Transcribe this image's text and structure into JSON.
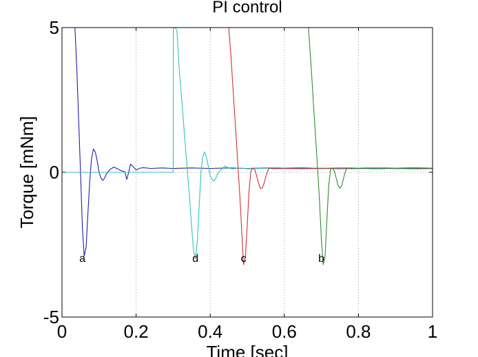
{
  "chart_data": {
    "type": "line",
    "title": "PI control",
    "xlabel": "Time [sec]",
    "ylabel": "Torque [mNm]",
    "xlim": [
      0,
      1
    ],
    "ylim": [
      -5,
      5
    ],
    "grid": "dotted vertical",
    "xticks": [
      0,
      0.2,
      0.4,
      0.6,
      0.8,
      1
    ],
    "xtick_labels": [
      "0",
      "0.2",
      "0.4",
      "0.6",
      "0.8",
      "1"
    ],
    "yticks": [
      -5,
      0,
      5
    ],
    "ytick_labels": [
      "-5",
      "0",
      "5"
    ],
    "annotations": [
      {
        "text": "a",
        "x": 0.055,
        "y": -3.1
      },
      {
        "text": "d",
        "x": 0.36,
        "y": -3.1
      },
      {
        "text": "c",
        "x": 0.49,
        "y": -3.1
      },
      {
        "text": "b",
        "x": 0.7,
        "y": -3.1
      }
    ],
    "series": [
      {
        "name": "a",
        "color": "#1f1fa8",
        "points": [
          [
            0.035,
            5.0
          ],
          [
            0.04,
            3.6
          ],
          [
            0.045,
            1.8
          ],
          [
            0.05,
            0.0
          ],
          [
            0.055,
            -1.9
          ],
          [
            0.06,
            -2.9
          ],
          [
            0.065,
            -2.6
          ],
          [
            0.07,
            -1.4
          ],
          [
            0.075,
            -0.3
          ],
          [
            0.08,
            0.5
          ],
          [
            0.085,
            0.8
          ],
          [
            0.09,
            0.7
          ],
          [
            0.095,
            0.4
          ],
          [
            0.1,
            0.0
          ],
          [
            0.105,
            -0.2
          ],
          [
            0.11,
            -0.28
          ],
          [
            0.115,
            -0.2
          ],
          [
            0.12,
            -0.05
          ],
          [
            0.13,
            0.1
          ],
          [
            0.14,
            0.18
          ],
          [
            0.15,
            0.12
          ],
          [
            0.16,
            0.05
          ],
          [
            0.165,
            0.04
          ],
          [
            0.17,
            0.0
          ],
          [
            0.175,
            -0.25
          ],
          [
            0.18,
            0.0
          ],
          [
            0.185,
            0.28
          ],
          [
            0.19,
            0.22
          ],
          [
            0.2,
            0.08
          ],
          [
            0.21,
            0.14
          ],
          [
            0.22,
            0.16
          ],
          [
            0.24,
            0.13
          ],
          [
            0.27,
            0.15
          ],
          [
            0.3,
            0.13
          ],
          [
            0.35,
            0.15
          ],
          [
            0.4,
            0.13
          ],
          [
            0.45,
            0.15
          ],
          [
            0.5,
            0.13
          ],
          [
            0.55,
            0.15
          ],
          [
            0.6,
            0.14
          ],
          [
            0.65,
            0.15
          ],
          [
            0.7,
            0.13
          ],
          [
            0.75,
            0.15
          ],
          [
            0.8,
            0.14
          ],
          [
            0.85,
            0.15
          ],
          [
            0.9,
            0.14
          ],
          [
            0.95,
            0.15
          ],
          [
            1.0,
            0.14
          ]
        ]
      },
      {
        "name": "d",
        "color": "#30c0c0",
        "points": [
          [
            0.0,
            0.0
          ],
          [
            0.3,
            0.0
          ],
          [
            0.3005,
            5.0
          ],
          [
            0.305,
            5.0
          ],
          [
            0.31,
            4.9
          ],
          [
            0.315,
            3.8
          ],
          [
            0.32,
            3.0
          ],
          [
            0.325,
            2.2
          ],
          [
            0.33,
            1.4
          ],
          [
            0.335,
            0.6
          ],
          [
            0.34,
            -0.2
          ],
          [
            0.345,
            -1.0
          ],
          [
            0.35,
            -1.9
          ],
          [
            0.355,
            -2.7
          ],
          [
            0.36,
            -3.0
          ],
          [
            0.365,
            -2.4
          ],
          [
            0.37,
            -1.2
          ],
          [
            0.375,
            0.0
          ],
          [
            0.38,
            0.55
          ],
          [
            0.385,
            0.7
          ],
          [
            0.39,
            0.5
          ],
          [
            0.395,
            0.2
          ],
          [
            0.4,
            -0.1
          ],
          [
            0.405,
            -0.25
          ],
          [
            0.41,
            -0.3
          ],
          [
            0.415,
            -0.2
          ],
          [
            0.42,
            -0.05
          ],
          [
            0.43,
            0.1
          ],
          [
            0.44,
            0.22
          ],
          [
            0.45,
            0.15
          ],
          [
            0.46,
            0.12
          ],
          [
            0.48,
            0.15
          ],
          [
            0.5,
            0.12
          ],
          [
            0.55,
            0.14
          ],
          [
            0.6,
            0.12
          ],
          [
            0.65,
            0.13
          ],
          [
            0.7,
            0.12
          ],
          [
            0.75,
            0.14
          ],
          [
            0.8,
            0.12
          ],
          [
            0.85,
            0.14
          ],
          [
            0.9,
            0.12
          ],
          [
            0.95,
            0.13
          ],
          [
            1.0,
            0.12
          ]
        ]
      },
      {
        "name": "c",
        "color": "#d03030",
        "points": [
          [
            0.45,
            5.0
          ],
          [
            0.455,
            4.2
          ],
          [
            0.46,
            3.2
          ],
          [
            0.465,
            2.2
          ],
          [
            0.47,
            1.2
          ],
          [
            0.475,
            0.2
          ],
          [
            0.48,
            -0.8
          ],
          [
            0.485,
            -2.0
          ],
          [
            0.49,
            -3.2
          ],
          [
            0.495,
            -2.9
          ],
          [
            0.5,
            -1.8
          ],
          [
            0.505,
            -0.6
          ],
          [
            0.51,
            0.05
          ],
          [
            0.515,
            0.15
          ],
          [
            0.52,
            0.1
          ],
          [
            0.525,
            -0.1
          ],
          [
            0.53,
            -0.35
          ],
          [
            0.535,
            -0.55
          ],
          [
            0.54,
            -0.55
          ],
          [
            0.545,
            -0.4
          ],
          [
            0.55,
            -0.15
          ],
          [
            0.555,
            0.05
          ],
          [
            0.56,
            0.15
          ],
          [
            0.57,
            0.12
          ],
          [
            0.6,
            0.14
          ],
          [
            0.65,
            0.12
          ],
          [
            0.7,
            0.14
          ],
          [
            0.75,
            0.12
          ],
          [
            0.8,
            0.14
          ],
          [
            0.85,
            0.12
          ],
          [
            0.9,
            0.14
          ],
          [
            0.95,
            0.12
          ],
          [
            1.0,
            0.14
          ]
        ]
      },
      {
        "name": "b",
        "color": "#2e8b2e",
        "points": [
          [
            0.665,
            5.0
          ],
          [
            0.67,
            4.1
          ],
          [
            0.675,
            3.1
          ],
          [
            0.68,
            2.1
          ],
          [
            0.685,
            1.1
          ],
          [
            0.69,
            0.1
          ],
          [
            0.695,
            -1.0
          ],
          [
            0.7,
            -2.3
          ],
          [
            0.705,
            -3.2
          ],
          [
            0.71,
            -2.9
          ],
          [
            0.715,
            -1.6
          ],
          [
            0.72,
            -0.4
          ],
          [
            0.725,
            0.1
          ],
          [
            0.73,
            0.15
          ],
          [
            0.735,
            0.05
          ],
          [
            0.74,
            -0.2
          ],
          [
            0.745,
            -0.45
          ],
          [
            0.75,
            -0.55
          ],
          [
            0.755,
            -0.45
          ],
          [
            0.76,
            -0.2
          ],
          [
            0.765,
            0.05
          ],
          [
            0.77,
            0.14
          ],
          [
            0.78,
            0.12
          ],
          [
            0.8,
            0.14
          ],
          [
            0.85,
            0.12
          ],
          [
            0.9,
            0.14
          ],
          [
            0.95,
            0.12
          ],
          [
            1.0,
            0.13
          ]
        ]
      }
    ]
  }
}
